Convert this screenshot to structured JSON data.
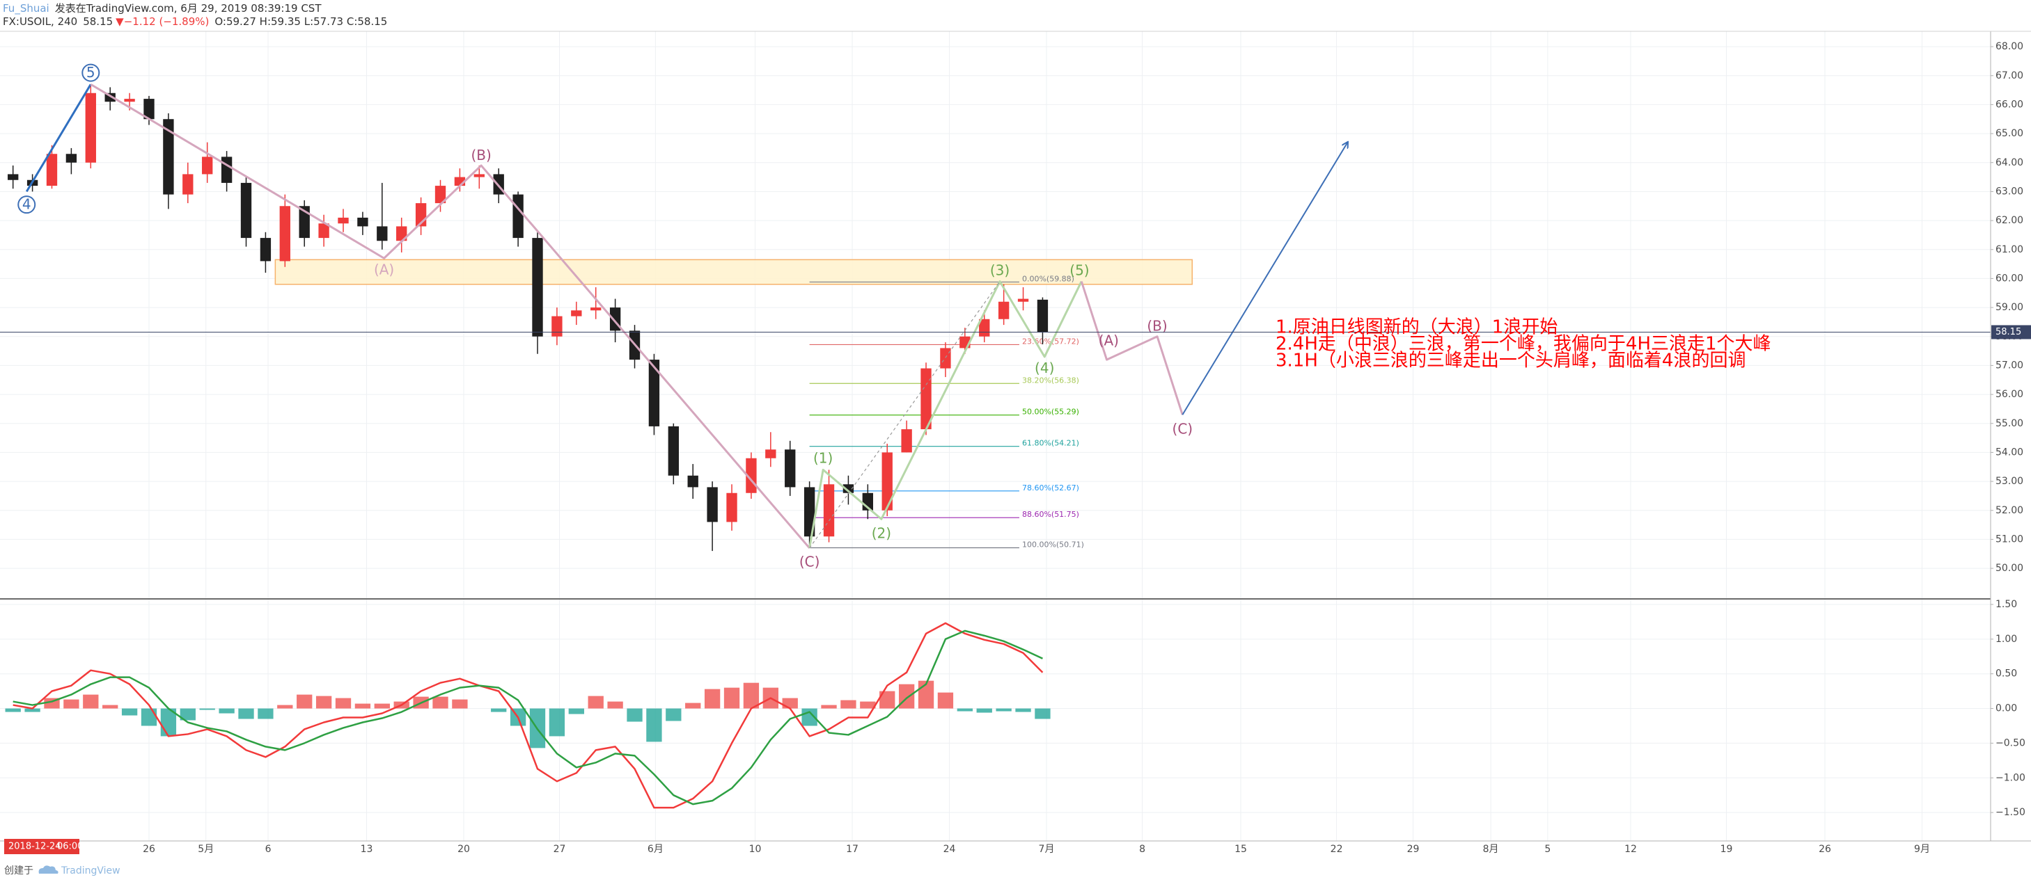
{
  "header": {
    "author": "Fu_Shuai",
    "published": "发表在TradingView.com, 6月 29, 2019 08:39:19 CST",
    "symbol": "FX:USOIL, 240",
    "price": "58.15",
    "change": "▼−1.12 (−1.89%)",
    "ohlc": "O:59.27 H:59.35 L:57.73 C:58.15"
  },
  "chart_data": [
    {
      "type": "candlestick",
      "colors": {
        "up": "#ef3b3b",
        "down": "#1f1f1f",
        "last_price": "#3a4566"
      },
      "xlim": [
        -7.67,
        94.8
      ],
      "ylim": [
        48.97,
        68.53
      ],
      "yticks": [
        {
          "value": 50,
          "label": "50.00"
        },
        {
          "value": 51,
          "label": "51.00"
        },
        {
          "value": 52,
          "label": "52.00"
        },
        {
          "value": 53,
          "label": "53.00"
        },
        {
          "value": 54,
          "label": "54.00"
        },
        {
          "value": 55,
          "label": "55.00"
        },
        {
          "value": 56,
          "label": "56.00"
        },
        {
          "value": 57,
          "label": "57.00"
        },
        {
          "value": 58,
          "label": "58.00"
        },
        {
          "value": 59,
          "label": "59.00"
        },
        {
          "value": 60,
          "label": "60.00"
        },
        {
          "value": 61,
          "label": "61.00"
        },
        {
          "value": 62,
          "label": "62.00"
        },
        {
          "value": 63,
          "label": "63.00"
        },
        {
          "value": 64,
          "label": "64.00"
        },
        {
          "value": 65,
          "label": "65.00"
        },
        {
          "value": 66,
          "label": "66.00"
        },
        {
          "value": 67,
          "label": "67.00"
        },
        {
          "value": 68,
          "label": "68.00"
        }
      ],
      "grid": true,
      "x": [
        -7,
        -6,
        -5,
        -4,
        -3,
        -2,
        -1,
        0,
        1,
        2,
        3,
        4,
        5,
        6,
        7,
        8,
        9,
        10,
        11,
        12,
        13,
        14,
        15,
        16,
        17,
        18,
        19,
        20,
        21,
        22,
        23,
        24,
        25,
        26,
        27,
        28,
        29,
        30,
        31,
        32,
        33,
        34,
        35,
        36,
        37,
        38,
        39,
        40,
        41,
        42,
        43,
        44,
        45,
        46
      ],
      "open": [
        63.6,
        63.4,
        63.2,
        64.3,
        64.0,
        66.4,
        66.1,
        66.2,
        65.5,
        62.9,
        63.6,
        64.2,
        63.3,
        61.4,
        60.6,
        62.5,
        61.4,
        61.9,
        62.1,
        61.8,
        61.3,
        61.8,
        62.6,
        63.2,
        63.5,
        63.6,
        62.9,
        61.4,
        58.0,
        58.7,
        58.9,
        59.0,
        58.2,
        57.2,
        54.9,
        53.2,
        52.8,
        51.6,
        52.6,
        53.8,
        54.1,
        52.8,
        51.1,
        52.9,
        52.6,
        52.0,
        54.0,
        54.8,
        56.9,
        57.6,
        58.0,
        58.6,
        59.2,
        59.27
      ],
      "high": [
        63.9,
        63.6,
        64.6,
        64.5,
        66.7,
        66.6,
        66.4,
        66.3,
        65.7,
        64.0,
        64.7,
        64.4,
        63.5,
        61.6,
        62.9,
        62.7,
        62.2,
        62.4,
        62.3,
        63.3,
        62.1,
        62.8,
        63.4,
        63.8,
        63.9,
        63.8,
        63.0,
        61.6,
        59.0,
        59.2,
        59.7,
        59.3,
        58.4,
        57.4,
        55.0,
        53.6,
        53.0,
        52.9,
        54.0,
        54.7,
        54.4,
        53.0,
        53.4,
        53.2,
        52.9,
        54.3,
        55.1,
        57.1,
        57.8,
        58.3,
        58.9,
        59.8,
        59.7,
        59.35
      ],
      "low": [
        63.1,
        63.0,
        63.1,
        63.6,
        63.8,
        65.8,
        65.8,
        65.3,
        62.4,
        62.6,
        63.3,
        63.0,
        61.1,
        60.2,
        60.4,
        61.1,
        61.1,
        61.6,
        61.5,
        61.0,
        60.9,
        61.5,
        62.3,
        63.0,
        63.1,
        62.6,
        61.1,
        57.4,
        57.7,
        58.4,
        58.6,
        57.8,
        56.9,
        54.6,
        52.9,
        52.4,
        50.6,
        51.3,
        52.4,
        53.5,
        52.5,
        50.7,
        50.9,
        52.2,
        51.7,
        51.8,
        54.0,
        54.6,
        56.6,
        57.4,
        57.8,
        58.4,
        58.9,
        57.73
      ],
      "close": [
        63.4,
        63.2,
        64.3,
        64.0,
        66.4,
        66.1,
        66.2,
        65.5,
        62.9,
        63.6,
        64.2,
        63.3,
        61.4,
        60.6,
        62.5,
        61.4,
        61.9,
        62.1,
        61.8,
        61.3,
        61.8,
        62.6,
        63.2,
        63.5,
        63.6,
        62.9,
        61.4,
        58.0,
        58.7,
        58.9,
        59.0,
        58.2,
        57.2,
        54.9,
        53.2,
        52.8,
        51.6,
        52.6,
        53.8,
        54.1,
        52.8,
        51.1,
        52.9,
        52.6,
        52.0,
        54.0,
        54.8,
        56.9,
        57.6,
        58.0,
        58.6,
        59.2,
        59.3,
        58.15
      ],
      "zone": {
        "x": [
          6.5,
          53.7
        ],
        "y": [
          59.8,
          60.65
        ],
        "color": "#fff2cc",
        "border": "#f6b26b"
      },
      "fib": {
        "x": [
          34,
          44.8
        ],
        "levels": [
          {
            "value": 59.88,
            "label": "0.00%(59.88)",
            "color": "#787b86"
          },
          {
            "value": 57.72,
            "label": "23.60%(57.72)",
            "color": "#e06666"
          },
          {
            "value": 56.38,
            "label": "38.20%(56.38)",
            "color": "#a7c957"
          },
          {
            "value": 55.29,
            "label": "50.00%(55.29)",
            "color": "#38b000"
          },
          {
            "value": 54.21,
            "label": "61.80%(54.21)",
            "color": "#20a39e"
          },
          {
            "value": 52.67,
            "label": "78.60%(52.67)",
            "color": "#2196f3"
          },
          {
            "value": 51.75,
            "label": "88.60%(51.75)",
            "color": "#9c27b0"
          },
          {
            "value": 50.71,
            "label": "100.00%(50.71)",
            "color": "#787b86"
          }
        ]
      },
      "lines": [
        {
          "color": "#2f6fc0",
          "x": [
            -6.3,
            -3
          ],
          "y": [
            63.0,
            66.7
          ]
        },
        {
          "color": "#d5a6bd",
          "x": [
            -3,
            12.1,
            17.1,
            34
          ],
          "y": [
            66.7,
            60.7,
            63.9,
            50.7
          ]
        },
        {
          "color": "#b6d7a8",
          "x": [
            34,
            34.7,
            37.7,
            43.8,
            46.1,
            48
          ],
          "y": [
            50.7,
            53.4,
            51.7,
            59.9,
            57.3,
            59.9
          ]
        },
        {
          "color": "#d5a6bd",
          "x": [
            48,
            49.3,
            51.9,
            53.2
          ],
          "y": [
            59.9,
            57.2,
            58.0,
            55.3
          ]
        },
        {
          "color": "#3d6fb6",
          "x": [
            53.2,
            61.7
          ],
          "y": [
            55.3,
            64.7
          ],
          "arrow": true
        },
        {
          "color": "#999999",
          "x": [
            34,
            43.8
          ],
          "y": [
            50.7,
            59.9
          ],
          "dashed": true
        }
      ],
      "annotations": [
        {
          "text": "5",
          "x": -3,
          "y": 67.1,
          "color": "#3d6fb6",
          "circled": true
        },
        {
          "text": "4",
          "x": -6.3,
          "y": 62.55,
          "color": "#3d6fb6",
          "circled": true
        },
        {
          "text": "(A)",
          "x": 12.1,
          "y": 60.3,
          "color": "#d5a6bd"
        },
        {
          "text": "(B)",
          "x": 17.1,
          "y": 64.25,
          "color": "#a64d79"
        },
        {
          "text": "(C)",
          "x": 34,
          "y": 50.22,
          "color": "#a64d79"
        },
        {
          "text": "(1)",
          "x": 34.7,
          "y": 53.8,
          "color": "#6aa84f"
        },
        {
          "text": "(2)",
          "x": 37.7,
          "y": 51.2,
          "color": "#6aa84f"
        },
        {
          "text": "(3)",
          "x": 43.8,
          "y": 60.27,
          "color": "#6aa84f"
        },
        {
          "text": "(4)",
          "x": 46.1,
          "y": 56.9,
          "color": "#6aa84f"
        },
        {
          "text": "(5)",
          "x": 47.9,
          "y": 60.27,
          "color": "#6aa84f"
        },
        {
          "text": "(A)",
          "x": 49.4,
          "y": 57.85,
          "color": "#a64d79"
        },
        {
          "text": "(B)",
          "x": 51.9,
          "y": 58.35,
          "color": "#a64d79"
        },
        {
          "text": "(C)",
          "x": 53.2,
          "y": 54.8,
          "color": "#a64d79"
        }
      ],
      "notes": [
        "1.原油日线图新的（大浪）1浪开始",
        "2.4H走（中浪）三浪，第一个峰，我偏向于4H三浪走1个大峰",
        "3.1H（小浪三浪的三峰走出一个头肩峰，面临着4浪的回调"
      ]
    },
    {
      "type": "macd",
      "xlim": [
        -7.67,
        94.8
      ],
      "ylim": [
        -1.91,
        1.57
      ],
      "yticks": [
        {
          "value": 1.5,
          "label": "1.50"
        },
        {
          "value": 1,
          "label": "1.00"
        },
        {
          "value": 0.5,
          "label": "0.50"
        },
        {
          "value": 0,
          "label": "0.00"
        },
        {
          "value": -0.5,
          "label": "−0.50"
        },
        {
          "value": -1,
          "label": "−1.00"
        },
        {
          "value": -1.5,
          "label": "−1.50"
        }
      ],
      "xticks": [
        {
          "value": 0,
          "label": "26"
        },
        {
          "value": 2.93,
          "label": "5月"
        },
        {
          "value": 6.13,
          "label": "6"
        },
        {
          "value": 11.2,
          "label": "13"
        },
        {
          "value": 16.2,
          "label": "20"
        },
        {
          "value": 21.13,
          "label": "27"
        },
        {
          "value": 26.07,
          "label": "6月"
        },
        {
          "value": 31.2,
          "label": "10"
        },
        {
          "value": 36.2,
          "label": "17"
        },
        {
          "value": 41.2,
          "label": "24"
        },
        {
          "value": 46.2,
          "label": "7月"
        },
        {
          "value": 51.13,
          "label": "8"
        },
        {
          "value": 56.2,
          "label": "15"
        },
        {
          "value": 61.13,
          "label": "22"
        },
        {
          "value": 65.07,
          "label": "29"
        },
        {
          "value": 69.07,
          "label": "8月"
        },
        {
          "value": 72,
          "label": "5"
        },
        {
          "value": 76.27,
          "label": "12"
        },
        {
          "value": 81.2,
          "label": "19"
        },
        {
          "value": 86.27,
          "label": "26"
        },
        {
          "value": 91.27,
          "label": "9月"
        }
      ],
      "x": [
        -7,
        -6,
        -5,
        -4,
        -3,
        -2,
        -1,
        0,
        1,
        2,
        3,
        4,
        5,
        6,
        7,
        8,
        9,
        10,
        11,
        12,
        13,
        14,
        15,
        16,
        17,
        18,
        19,
        20,
        21,
        22,
        23,
        24,
        25,
        26,
        27,
        28,
        29,
        30,
        31,
        32,
        33,
        34,
        35,
        36,
        37,
        38,
        39,
        40,
        41,
        42,
        43,
        44,
        45,
        46
      ],
      "series": [
        {
          "color": "#f23a3a",
          "values": [
            0.05,
            0.0,
            0.25,
            0.33,
            0.55,
            0.5,
            0.35,
            0.05,
            -0.4,
            -0.37,
            -0.3,
            -0.4,
            -0.6,
            -0.7,
            -0.55,
            -0.3,
            -0.2,
            -0.13,
            -0.13,
            -0.07,
            0.05,
            0.25,
            0.37,
            0.43,
            0.33,
            0.25,
            -0.13,
            -0.87,
            -1.05,
            -0.93,
            -0.6,
            -0.55,
            -0.87,
            -1.43,
            -1.43,
            -1.3,
            -1.05,
            -0.5,
            0.0,
            0.15,
            0.0,
            -0.4,
            -0.3,
            -0.13,
            -0.13,
            0.33,
            0.52,
            1.08,
            1.23,
            1.08,
            0.99,
            0.93,
            0.8,
            0.52
          ]
        },
        {
          "color": "#2ea043",
          "values": [
            0.1,
            0.05,
            0.1,
            0.2,
            0.35,
            0.45,
            0.45,
            0.3,
            0.0,
            -0.2,
            -0.28,
            -0.33,
            -0.45,
            -0.55,
            -0.6,
            -0.5,
            -0.38,
            -0.28,
            -0.2,
            -0.14,
            -0.05,
            0.08,
            0.2,
            0.3,
            0.33,
            0.3,
            0.12,
            -0.3,
            -0.65,
            -0.85,
            -0.78,
            -0.65,
            -0.68,
            -0.95,
            -1.25,
            -1.38,
            -1.33,
            -1.15,
            -0.85,
            -0.45,
            -0.15,
            -0.05,
            -0.35,
            -0.38,
            -0.25,
            -0.12,
            0.15,
            0.35,
            1.0,
            1.12,
            1.05,
            0.97,
            0.85,
            0.72
          ]
        }
      ],
      "histogram": {
        "color_positive": "#ef5350",
        "color_negative": "#26a69a",
        "values": [
          -0.05,
          -0.05,
          0.15,
          0.13,
          0.2,
          0.05,
          -0.1,
          -0.25,
          -0.4,
          -0.17,
          -0.02,
          -0.07,
          -0.15,
          -0.15,
          0.05,
          0.2,
          0.18,
          0.15,
          0.07,
          0.07,
          0.1,
          0.17,
          0.17,
          0.13,
          0.0,
          -0.05,
          -0.25,
          -0.57,
          -0.4,
          -0.08,
          0.18,
          0.1,
          -0.19,
          -0.48,
          -0.18,
          0.08,
          0.28,
          0.3,
          0.37,
          0.3,
          0.15,
          -0.25,
          0.05,
          0.12,
          0.1,
          0.25,
          0.35,
          0.4,
          0.23,
          -0.04,
          -0.06,
          -0.04,
          -0.05,
          -0.15
        ]
      }
    }
  ],
  "cursor_label": {
    "date": "2018-12-24",
    "time": "06:00"
  },
  "footer": {
    "created": "创建于",
    "brand": "TradingView"
  }
}
